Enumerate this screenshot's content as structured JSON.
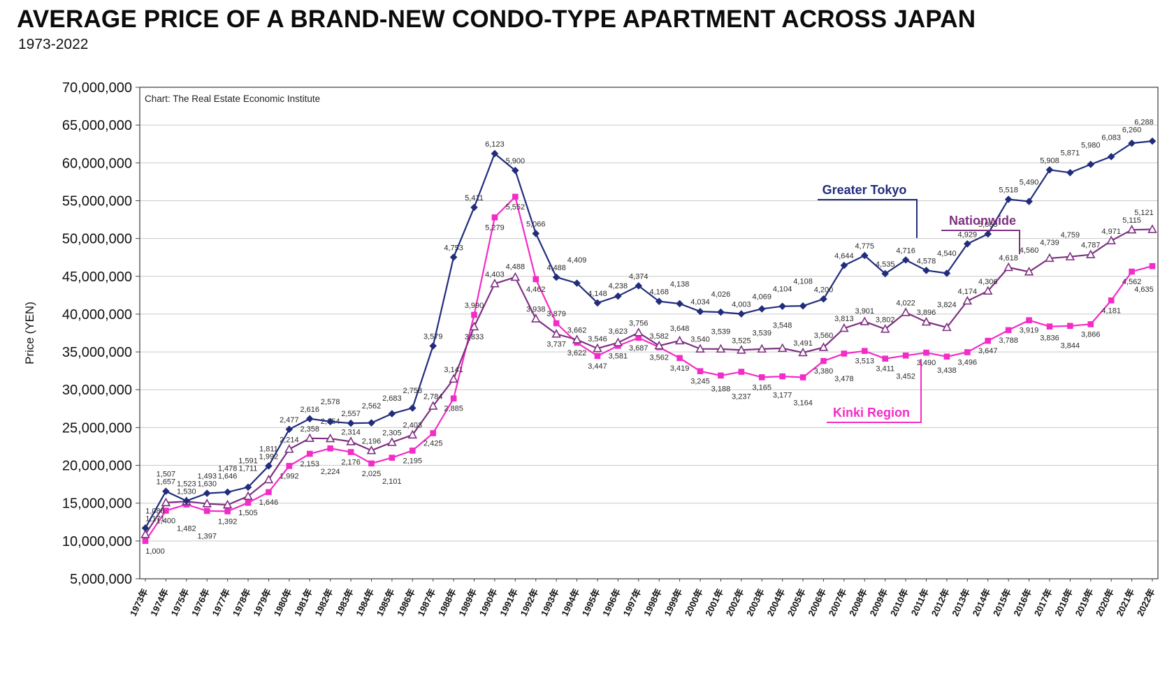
{
  "page": {
    "title": "AVERAGE PRICE OF A BRAND-NEW CONDO-TYPE APARTMENT ACROSS JAPAN",
    "subtitle": "1973-2022"
  },
  "chart_data": {
    "type": "line",
    "title": "AVERAGE PRICE OF A BRAND-NEW CONDO-TYPE APARTMENT ACROSS JAPAN",
    "subtitle": "1973-2022",
    "source_note": "Chart: The Real Estate Economic Institute",
    "ylabel": "Price (YEN)",
    "xlabel": "",
    "grid": "horizontal",
    "label_unit_multiplier": 10000,
    "y_axis": {
      "min": 5000000,
      "max": 70000000,
      "step": 5000000,
      "tick_labels": [
        "70,000,000",
        "65,000,000",
        "60,000,000",
        "55,000,000",
        "50,000,000",
        "45,000,000",
        "40,000,000",
        "35,000,000",
        "30,000,000",
        "25,000,000",
        "20,000,000",
        "15,000,000",
        "10,000,000",
        "5,000,000"
      ]
    },
    "x": [
      "1973年",
      "1974年",
      "1975年",
      "1976年",
      "1977年",
      "1978年",
      "1979年",
      "1980年",
      "1981年",
      "1982年",
      "1983年",
      "1984年",
      "1985年",
      "1986年",
      "1987年",
      "1988年",
      "1989年",
      "1990年",
      "1991年",
      "1992年",
      "1993年",
      "1994年",
      "1995年",
      "1996年",
      "1997年",
      "1998年",
      "1999年",
      "2000年",
      "2001年",
      "2002年",
      "2003年",
      "2004年",
      "2005年",
      "2006年",
      "2007年",
      "2008年",
      "2009年",
      "2010年",
      "2011年",
      "2012年",
      "2013年",
      "2014年",
      "2015年",
      "2016年",
      "2017年",
      "2018年",
      "2019年",
      "2020年",
      "2021年",
      "2022年"
    ],
    "series": [
      {
        "name": "Greater Tokyo",
        "slug": "greater-tokyo",
        "color": "#212d7c",
        "marker": "diamond",
        "label_position": "above",
        "values": [
          1171,
          1657,
          1530,
          1630,
          1646,
          1711,
          1992,
          2477,
          2616,
          2578,
          2557,
          2562,
          2683,
          2758,
          3579,
          4753,
          5411,
          6123,
          5900,
          5066,
          4488,
          4409,
          4148,
          4238,
          4374,
          4168,
          4138,
          4034,
          4026,
          4003,
          4069,
          4104,
          4108,
          4200,
          4644,
          4775,
          4535,
          4716,
          4578,
          4540,
          4929,
          5060,
          5518,
          5490,
          5908,
          5871,
          5980,
          6083,
          6260,
          6288
        ]
      },
      {
        "name": "Nationwide",
        "slug": "nationwide",
        "color": "#7d3180",
        "marker": "triangle-open",
        "label_position": "above",
        "values": [
          1086,
          1507,
          1523,
          1493,
          1478,
          1591,
          1811,
          2214,
          2358,
          2354,
          2314,
          2196,
          2305,
          2403,
          2784,
          3141,
          3833,
          4403,
          4488,
          3938,
          3737,
          3662,
          3546,
          3623,
          3756,
          3582,
          3648,
          3540,
          3539,
          3525,
          3539,
          3548,
          3491,
          3560,
          3813,
          3901,
          3802,
          4022,
          3896,
          3824,
          4174,
          4306,
          4618,
          4560,
          4739,
          4759,
          4787,
          4971,
          5115,
          5121
        ]
      },
      {
        "name": "Kinki Region",
        "slug": "kinki-region",
        "color": "#f32bc7",
        "marker": "square",
        "label_position": "below",
        "values": [
          1000,
          1400,
          1482,
          1397,
          1392,
          1505,
          1646,
          1992,
          2153,
          2224,
          2176,
          2025,
          2101,
          2195,
          2425,
          2885,
          3990,
          5279,
          5552,
          4462,
          3879,
          3622,
          3447,
          3581,
          3687,
          3562,
          3419,
          3245,
          3188,
          3237,
          3165,
          3177,
          3164,
          3380,
          3478,
          3513,
          3411,
          3452,
          3490,
          3438,
          3496,
          3647,
          3788,
          3919,
          3836,
          3844,
          3866,
          4181,
          4562,
          4635
        ]
      }
    ],
    "annotations": [
      {
        "text": "Greater Tokyo",
        "slug": "greater-tokyo",
        "color": "#212d7c"
      },
      {
        "text": "Nationwide",
        "slug": "nationwide",
        "color": "#7d3180"
      },
      {
        "text": "Kinki Region",
        "slug": "kinki-region",
        "color": "#f32bc7"
      }
    ],
    "legend_position": "inline-callouts"
  }
}
